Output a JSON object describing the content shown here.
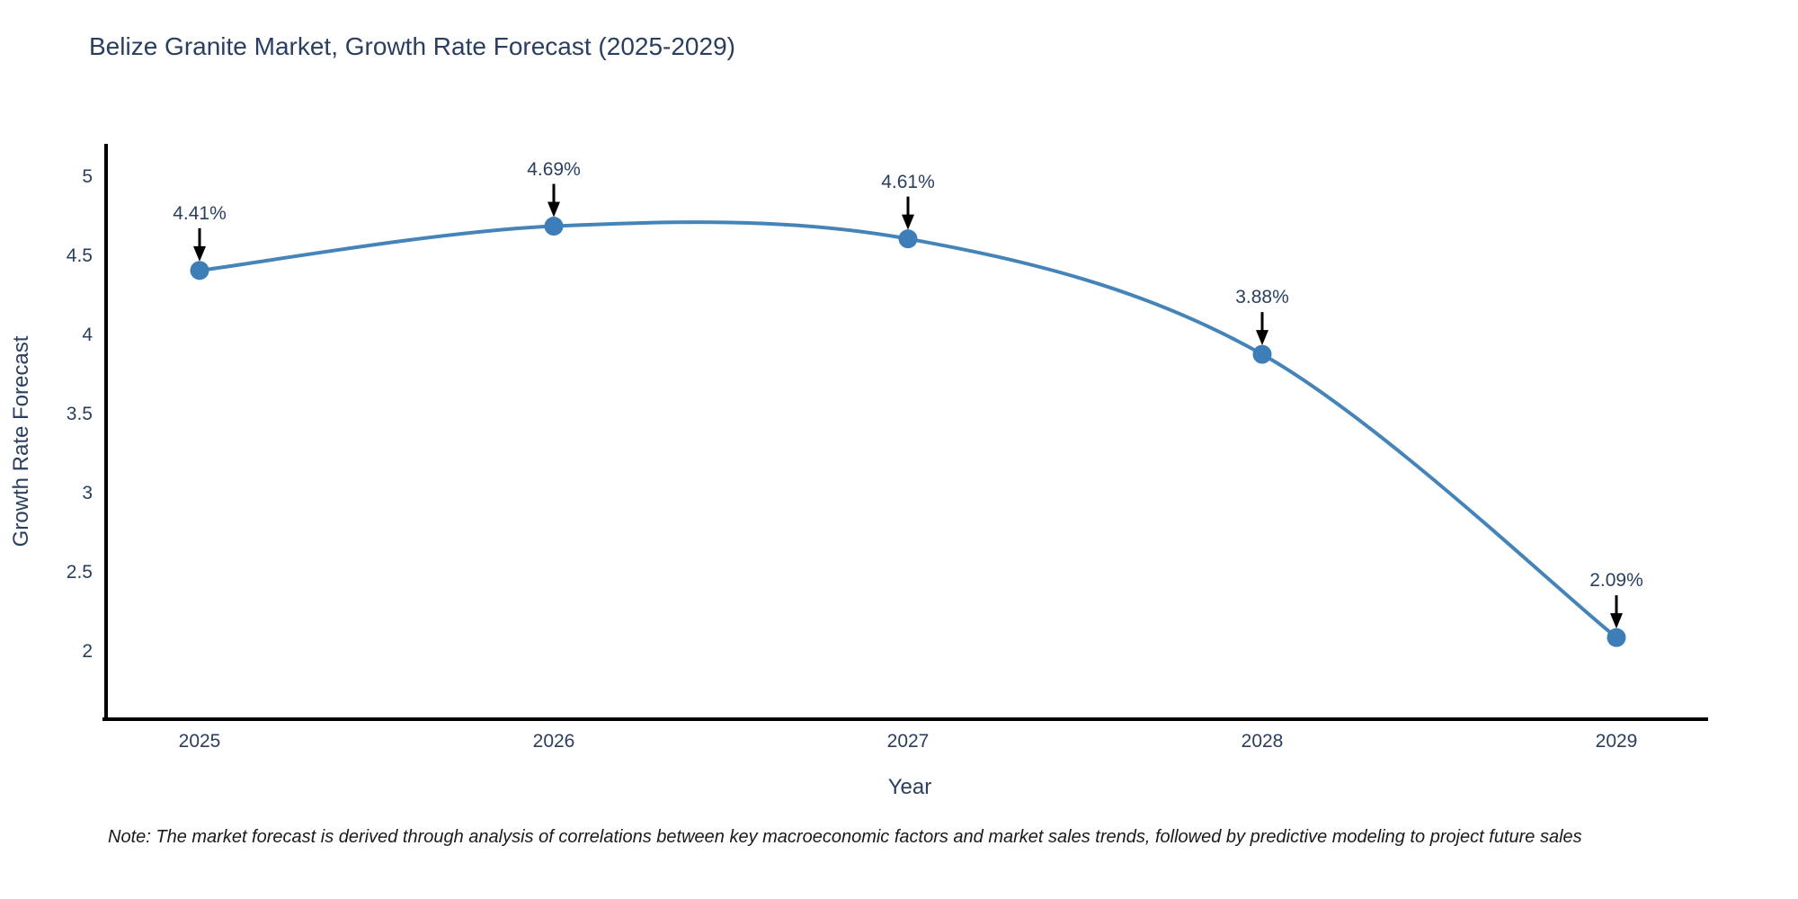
{
  "page": {
    "title": "Belize Granite Market, Growth Rate Forecast (2025-2029)",
    "footnote": "Note: The market forecast is derived through analysis of correlations between key macroeconomic factors and market sales trends, followed by predictive modeling to project future sales"
  },
  "chart_data": {
    "type": "line",
    "title": "Belize Granite Market, Growth Rate Forecast (2025-2029)",
    "x": [
      2025,
      2026,
      2027,
      2028,
      2029
    ],
    "series": [
      {
        "name": "Growth Rate Forecast",
        "values": [
          4.41,
          4.69,
          4.61,
          3.88,
          2.09
        ]
      }
    ],
    "point_labels": [
      "4.41%",
      "4.69%",
      "4.61%",
      "3.88%",
      "2.09%"
    ],
    "xlabel": "Year",
    "ylabel": "Growth Rate Forecast",
    "x_tick_labels": [
      "2025",
      "2026",
      "2027",
      "2028",
      "2029"
    ],
    "y_tick_labels": [
      "5",
      "4.5",
      "4",
      "3.5",
      "3",
      "2.5",
      "2"
    ],
    "y_tick_values": [
      5,
      4.5,
      4,
      3.5,
      3,
      2.5,
      2
    ],
    "xlim": [
      2024.74,
      2029.26
    ],
    "ylim": [
      1.57,
      5.21
    ],
    "grid": false,
    "legend_position": "none",
    "line_shape": "spline",
    "colors": {
      "line": "#4484b9",
      "marker": "#3d7db8",
      "axis": "#000000",
      "text": "#2a3f5f",
      "annotation_arrow": "#000000",
      "background": "#ffffff"
    }
  }
}
